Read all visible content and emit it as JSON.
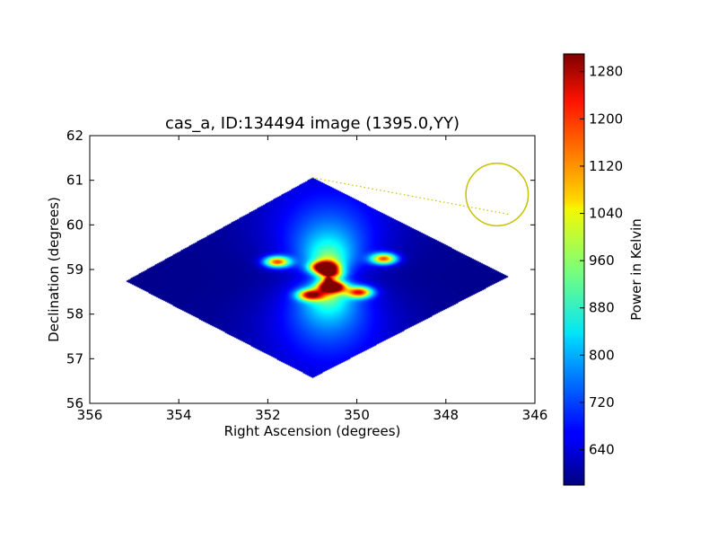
{
  "chart_data": {
    "type": "heatmap",
    "title": "cas_a, ID:134494 image (1395.0,YY)",
    "xlabel": "Right Ascension (degrees)",
    "ylabel": "Declination (degrees)",
    "xlim": [
      356,
      346
    ],
    "ylim": [
      56,
      62
    ],
    "xticks": [
      "356",
      "354",
      "352",
      "350",
      "348",
      "346"
    ],
    "yticks": [
      "56",
      "57",
      "58",
      "59",
      "60",
      "61",
      "62"
    ],
    "colorbar": {
      "label": "Power in Kelvin",
      "range": [
        580,
        1310
      ],
      "ticks": [
        "640",
        "720",
        "800",
        "880",
        "960",
        "1040",
        "1120",
        "1200",
        "1280"
      ],
      "colormap": "jet"
    },
    "footprint_polygon_radec": [
      [
        351.0,
        61.07
      ],
      [
        355.2,
        58.75
      ],
      [
        351.0,
        56.58
      ],
      [
        346.6,
        58.85
      ]
    ],
    "background_level": 590,
    "hotspots": [
      {
        "ra": 350.75,
        "dec": 59.06,
        "value": 1300
      },
      {
        "ra": 350.55,
        "dec": 58.62,
        "value": 1300
      },
      {
        "ra": 351.8,
        "dec": 59.18,
        "value": 1180
      },
      {
        "ra": 349.4,
        "dec": 59.25,
        "value": 1180
      },
      {
        "ra": 351.05,
        "dec": 58.44,
        "value": 1180
      },
      {
        "ra": 349.95,
        "dec": 58.5,
        "value": 1180
      },
      {
        "ra": 350.6,
        "dec": 58.9,
        "value": 1050
      }
    ],
    "overlay": {
      "circle": {
        "ra": 346.85,
        "dec": 60.68,
        "radius_deg": 0.7,
        "color": "#c8c000"
      },
      "dotted_line": [
        [
          351.0,
          61.06
        ],
        [
          346.6,
          60.24
        ]
      ]
    }
  }
}
